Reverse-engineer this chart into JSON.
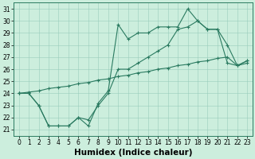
{
  "xlabel": "Humidex (Indice chaleur)",
  "xlim": [
    -0.5,
    23.5
  ],
  "ylim": [
    20.5,
    31.5
  ],
  "yticks": [
    21,
    22,
    23,
    24,
    25,
    26,
    27,
    28,
    29,
    30,
    31
  ],
  "xticks": [
    0,
    1,
    2,
    3,
    4,
    5,
    6,
    7,
    8,
    9,
    10,
    11,
    12,
    13,
    14,
    15,
    16,
    17,
    18,
    19,
    20,
    21,
    22,
    23
  ],
  "line1_x": [
    0,
    1,
    2,
    3,
    4,
    5,
    6,
    7,
    8,
    9,
    10,
    11,
    12,
    13,
    14,
    15,
    16,
    17,
    18,
    19,
    20,
    21,
    22,
    23
  ],
  "line1_y": [
    24,
    24,
    23,
    21.3,
    21.3,
    21.3,
    22,
    21.3,
    23.2,
    24.2,
    29.7,
    28.5,
    29.0,
    29.0,
    29.5,
    29.5,
    29.5,
    31.0,
    30.0,
    29.3,
    29.3,
    28.0,
    26.3,
    26.7
  ],
  "line2_x": [
    0,
    1,
    2,
    3,
    4,
    5,
    6,
    7,
    8,
    9,
    10,
    11,
    12,
    13,
    14,
    15,
    16,
    17,
    18,
    19,
    20,
    21,
    22,
    23
  ],
  "line2_y": [
    24,
    24,
    23,
    21.3,
    21.3,
    21.3,
    22,
    21.8,
    23.0,
    24.0,
    26.0,
    26.0,
    26.5,
    27.0,
    27.5,
    28.0,
    29.3,
    29.5,
    30.0,
    29.3,
    29.3,
    26.5,
    26.3,
    26.7
  ],
  "line3_x": [
    0,
    1,
    2,
    3,
    4,
    5,
    6,
    7,
    8,
    9,
    10,
    11,
    12,
    13,
    14,
    15,
    16,
    17,
    18,
    19,
    20,
    21,
    22,
    23
  ],
  "line3_y": [
    24.0,
    24.1,
    24.2,
    24.4,
    24.5,
    24.6,
    24.8,
    24.9,
    25.1,
    25.2,
    25.4,
    25.5,
    25.7,
    25.8,
    26.0,
    26.1,
    26.3,
    26.4,
    26.6,
    26.7,
    26.9,
    27.0,
    26.3,
    26.5
  ],
  "color": "#2a7a60",
  "bg_color": "#cceedd",
  "grid_color": "#99ccbb",
  "tick_fontsize": 5.5,
  "xlabel_fontsize": 7.5
}
